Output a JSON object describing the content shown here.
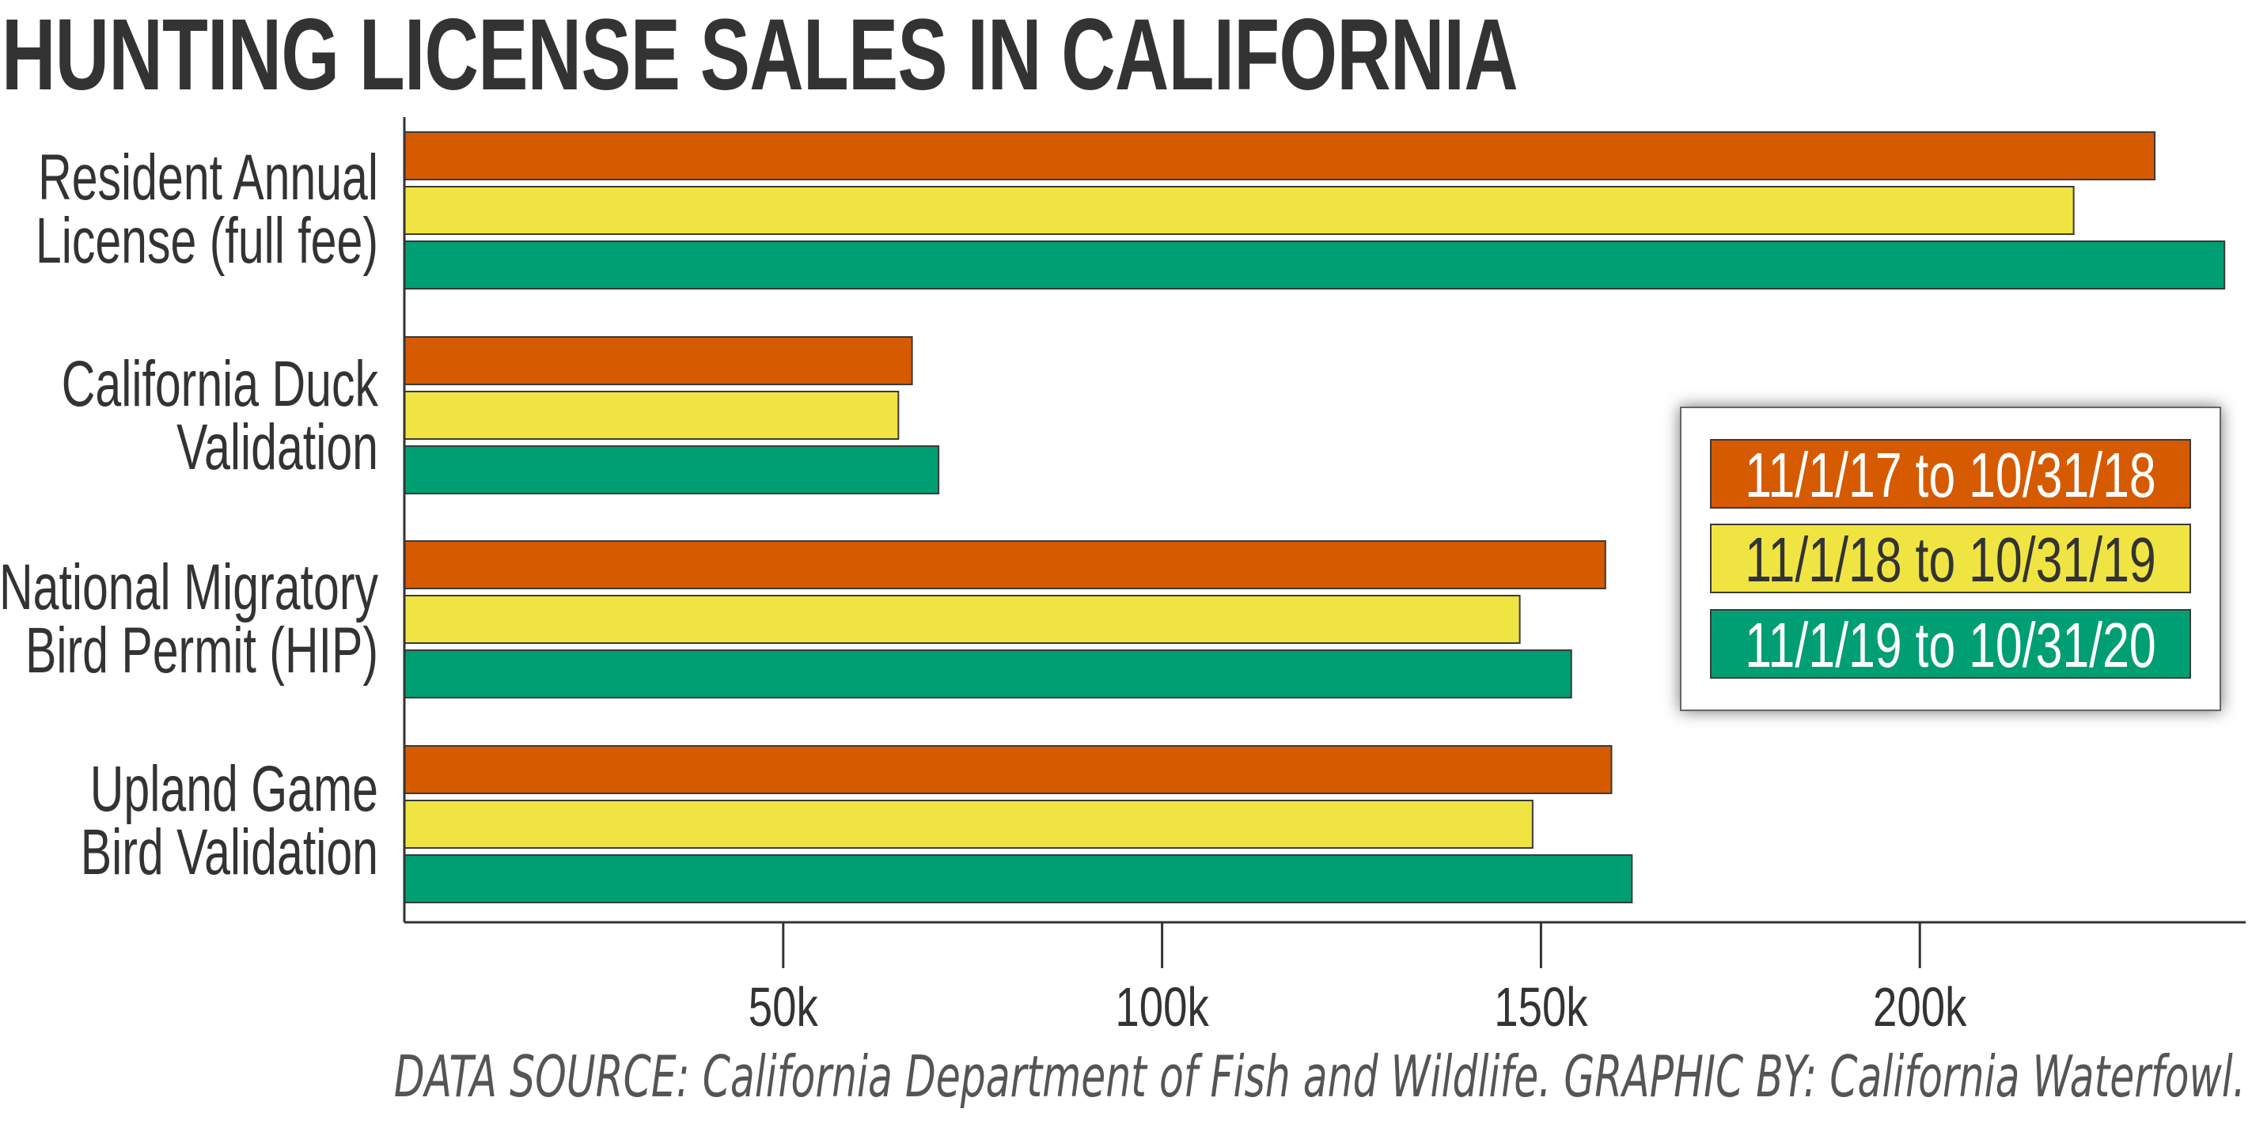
{
  "title": "HUNTING LICENSE SALES IN CALIFORNIA",
  "source": "DATA SOURCE: California Department of Fish and Wildlife. GRAPHIC BY: California Waterfowl.",
  "chart_data": {
    "type": "bar",
    "orientation": "horizontal",
    "title": "HUNTING LICENSE SALES IN CALIFORNIA",
    "categories": [
      [
        "Resident Annual",
        "License (full fee)"
      ],
      [
        "California Duck",
        "Validation"
      ],
      [
        "National Migratory",
        "Bird Permit (HIP)"
      ],
      [
        "Upland Game",
        "Bird Validation"
      ]
    ],
    "series": [
      {
        "name": "11/1/17 to 10/31/18",
        "color": "#D65A00",
        "values": [
          231000,
          67000,
          158500,
          159300
        ]
      },
      {
        "name": "11/1/18 to 10/31/19",
        "color": "#F0E442",
        "values": [
          220300,
          65200,
          147200,
          148900
        ]
      },
      {
        "name": "11/1/19 to 10/31/20",
        "color": "#009E73",
        "values": [
          240200,
          70500,
          154000,
          162000
        ]
      }
    ],
    "xlim": [
      0,
      243000
    ],
    "xticks": [
      50000,
      100000,
      150000,
      200000
    ],
    "xtick_labels": [
      "50k",
      "100k",
      "150k",
      "200k"
    ],
    "xlabel": "",
    "ylabel": "",
    "grid": false,
    "legend_position": "right, inside plot"
  }
}
